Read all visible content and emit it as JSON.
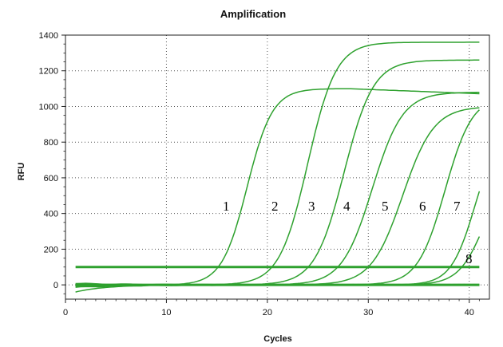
{
  "chart_data": {
    "type": "line",
    "title": "Amplification",
    "xlabel": "Cycles",
    "ylabel": "RFU",
    "xlim": [
      0,
      42
    ],
    "ylim": [
      -80,
      1400
    ],
    "x_ticks": [
      0,
      10,
      20,
      30,
      40
    ],
    "y_ticks": [
      0,
      200,
      400,
      600,
      800,
      1000,
      1200,
      1400
    ],
    "grid": "dotted",
    "legend": "none",
    "line_color": "#2ea12e",
    "threshold": 100,
    "series": [
      {
        "label": "1",
        "plateau": 1100,
        "midpoint": 18.0,
        "slope": 1.25
      },
      {
        "label": "2",
        "plateau": 1360,
        "midpoint": 24.0,
        "slope": 1.4
      },
      {
        "label": "3",
        "plateau": 1260,
        "midpoint": 27.6,
        "slope": 1.45
      },
      {
        "label": "4",
        "plateau": 1080,
        "midpoint": 30.4,
        "slope": 1.5
      },
      {
        "label": "5",
        "plateau": 1000,
        "midpoint": 33.4,
        "slope": 1.55
      },
      {
        "label": "6",
        "plateau": 1060,
        "midpoint": 37.6,
        "slope": 1.35
      },
      {
        "label": "7",
        "plateau": 900,
        "midpoint": 40.6,
        "slope": 1.2
      },
      {
        "label": "8",
        "plateau": 700,
        "midpoint": 41.6,
        "slope": 1.3
      }
    ]
  },
  "curve_labels": [
    "1",
    "2",
    "3",
    "4",
    "5",
    "6",
    "7",
    "8"
  ]
}
